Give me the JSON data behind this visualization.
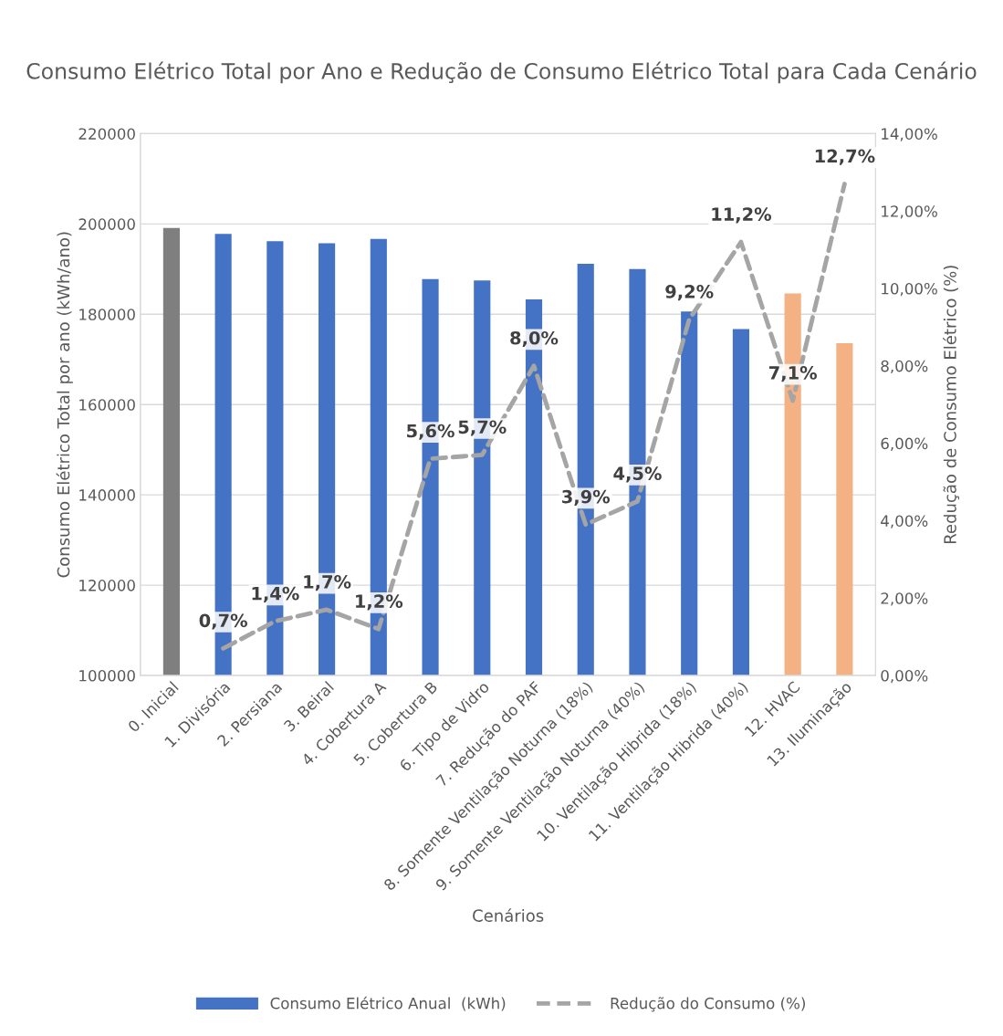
{
  "chart_data": {
    "type": "bar",
    "title": "Consumo Elétrico Total por Ano e Redução de Consumo Elétrico Total para Cada Cenário",
    "xlabel": "Cenários",
    "ylabel": "Consumo Elétrico Total por ano (kWh/ano)",
    "y2label": "Redução de Consumo Elétrico (%)",
    "categories": [
      "0. Inicial",
      "1. Divisória",
      "2. Persiana",
      "3. Beiral",
      "4. Cobertura A",
      "5. Cobertura B",
      "6. Tipo de Vidro",
      "7. Redução do PAF",
      "8. Somente Ventilação Noturna (18%)",
      "9. Somente Ventilação Noturna (40%)",
      "10. Ventilação Hibrida (18%)",
      "11. Ventilação Hibrida (40%)",
      "12. HVAC",
      "13. Iluminação"
    ],
    "series": [
      {
        "name": "Consumo Elétrico Anual  (kWh)",
        "color": "#4472c4",
        "colors": [
          "#7f7f7f",
          "#4472c4",
          "#4472c4",
          "#4472c4",
          "#4472c4",
          "#4472c4",
          "#4472c4",
          "#4472c4",
          "#4472c4",
          "#4472c4",
          "#4472c4",
          "#4472c4",
          "#f4b183",
          "#f4b183"
        ],
        "values": [
          199100,
          197800,
          196200,
          195700,
          196700,
          187800,
          187500,
          183300,
          191200,
          190000,
          180600,
          176700,
          184600,
          173600
        ]
      },
      {
        "name": "Redução do Consumo (%)",
        "type": "line",
        "axis": "y2",
        "color": "#a5a5a5",
        "line_style": "dashed",
        "marker": "none",
        "values": [
          null,
          0.7,
          1.4,
          1.7,
          1.2,
          5.6,
          5.7,
          8.0,
          3.9,
          4.5,
          9.2,
          11.2,
          7.1,
          12.7
        ],
        "value_labels": [
          null,
          "0,7%",
          "1,4%",
          "1,7%",
          "1,2%",
          "5,6%",
          "5,7%",
          "8,0%",
          "3,9%",
          "4,5%",
          "9,2%",
          "11,2%",
          "7,1%",
          "12,7%"
        ]
      }
    ],
    "ylim": [
      100000,
      220000
    ],
    "yticks": [
      100000,
      120000,
      140000,
      160000,
      180000,
      200000,
      220000
    ],
    "y2lim": [
      0,
      14
    ],
    "y2ticks": [
      {
        "value": 0,
        "label": "0,00%"
      },
      {
        "value": 2,
        "label": "2,00%"
      },
      {
        "value": 4,
        "label": "4,00%"
      },
      {
        "value": 6,
        "label": "6,00%"
      },
      {
        "value": 8,
        "label": "8,00%"
      },
      {
        "value": 10,
        "label": "10,00%"
      },
      {
        "value": 12,
        "label": "12,00%"
      },
      {
        "value": 14,
        "label": "14,00%"
      }
    ],
    "grid": "y",
    "legend": "bottom"
  }
}
